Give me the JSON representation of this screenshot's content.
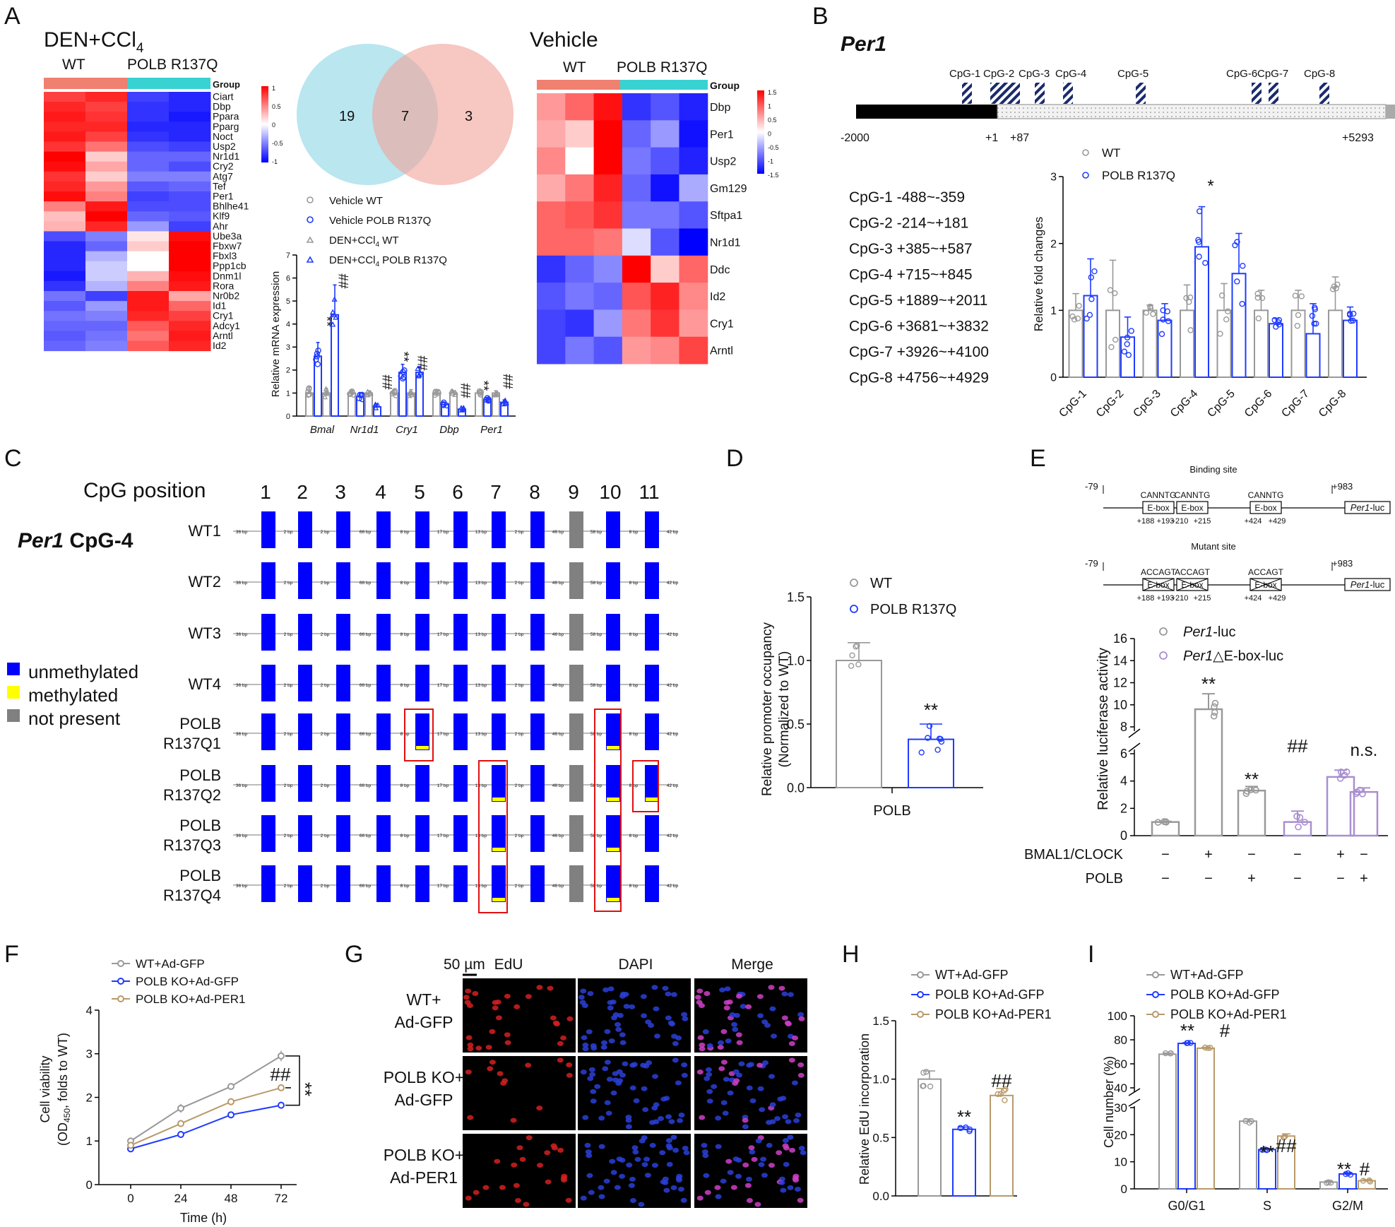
{
  "panel_letters": [
    "A",
    "B",
    "C",
    "D",
    "E",
    "F",
    "G",
    "H",
    "I"
  ],
  "A": {
    "left_heatmap": {
      "title": "DEN+CCl",
      "title_sub": "4",
      "groups": [
        "WT",
        "POLB R137Q"
      ],
      "group_label": "Group",
      "genes": [
        "Ciart",
        "Dbp",
        "Ppara",
        "Pparg",
        "Noct",
        "Usp2",
        "Nr1d1",
        "Cry2",
        "Atg7",
        "Tef",
        "Per1",
        "Bhlhe41",
        "Klf9",
        "Ahr",
        "Ube3a",
        "Fbxw7",
        "Fbxl3",
        "Ppp1cb",
        "Dnm1l",
        "Rora",
        "Nr0b2",
        "Id1",
        "Cry1",
        "Adcy1",
        "Arntl",
        "Id2"
      ],
      "scale": [
        "1",
        "0.5",
        "0",
        "-0.5",
        "-1"
      ],
      "values": [
        [
          0.75,
          0.85,
          -0.75,
          -0.85
        ],
        [
          0.85,
          0.75,
          -0.8,
          -0.85
        ],
        [
          0.9,
          0.8,
          -0.8,
          -0.9
        ],
        [
          0.85,
          0.85,
          -0.85,
          -0.85
        ],
        [
          0.9,
          0.75,
          -0.8,
          -0.85
        ],
        [
          0.8,
          0.55,
          -0.7,
          -0.75
        ],
        [
          1,
          0.2,
          -0.6,
          -0.6
        ],
        [
          0.95,
          0.35,
          -0.6,
          -0.7
        ],
        [
          0.8,
          0.2,
          -0.5,
          -0.5
        ],
        [
          0.85,
          0.4,
          -0.65,
          -0.6
        ],
        [
          0.95,
          0.5,
          -0.75,
          -0.7
        ],
        [
          0.5,
          0.9,
          -0.7,
          -0.7
        ],
        [
          0.25,
          1,
          -0.6,
          -0.65
        ],
        [
          0.3,
          0.85,
          -0.4,
          -0.75
        ],
        [
          -0.7,
          -0.5,
          0.1,
          0.95
        ],
        [
          -0.85,
          -0.6,
          0.2,
          1
        ],
        [
          -0.85,
          -0.3,
          0.0,
          1
        ],
        [
          -0.85,
          -0.2,
          0.0,
          1
        ],
        [
          -0.9,
          -0.2,
          0.3,
          0.95
        ],
        [
          -0.8,
          -0.3,
          0.5,
          0.9
        ],
        [
          -0.55,
          -0.75,
          0.9,
          0.35
        ],
        [
          -0.65,
          -0.4,
          0.9,
          0.6
        ],
        [
          -0.55,
          -0.5,
          0.85,
          0.75
        ],
        [
          -0.6,
          -0.6,
          0.65,
          0.85
        ],
        [
          -0.65,
          -0.55,
          0.55,
          0.9
        ],
        [
          -0.6,
          -0.5,
          0.65,
          0.85
        ]
      ]
    },
    "venn": {
      "left": "19",
      "center": "7",
      "right": "3"
    },
    "bar_chart": {
      "legend": [
        "Vehicle WT",
        "Vehicle POLB R137Q",
        "DEN+CCl4 WT",
        "DEN+CCl4 POLB R137Q"
      ],
      "legend_prefix": "DEN+CCl",
      "legend_sub": "4",
      "legend_tail_wt": " WT",
      "legend_tail_mut": " POLB R137Q",
      "ylabel": "Relative mRNA expression",
      "yticks": [
        "0",
        "1",
        "2",
        "3",
        "4",
        "5",
        "6",
        "7"
      ],
      "categories": [
        "Bmal",
        "Nr1d1",
        "Cry1",
        "Dbp",
        "Per1"
      ]
    },
    "right_heatmap": {
      "title": "Vehicle",
      "groups": [
        "WT",
        "POLB R137Q"
      ],
      "group_label": "Group",
      "genes": [
        "Dbp",
        "Per1",
        "Usp2",
        "Gm129",
        "Sftpa1",
        "Nr1d1",
        "Ddc",
        "Id2",
        "Cry1",
        "Arntl"
      ],
      "scale": [
        "1.5",
        "1",
        "0.5",
        "0",
        "-0.5",
        "-1",
        "-1.5"
      ],
      "values": [
        [
          0.6,
          0.9,
          1.4,
          -1.2,
          -1.0,
          -1.3
        ],
        [
          0.5,
          0.3,
          1.5,
          -0.9,
          -0.6,
          -1.4
        ],
        [
          0.7,
          0.0,
          1.5,
          -0.8,
          -1.0,
          -1.3
        ],
        [
          0.5,
          0.8,
          1.3,
          -0.9,
          -1.4,
          -0.5
        ],
        [
          0.9,
          1.0,
          1.2,
          -0.8,
          -0.8,
          -1.0
        ],
        [
          0.9,
          0.9,
          0.8,
          -0.2,
          -1.0,
          -1.5
        ],
        [
          -1.2,
          -0.9,
          -0.7,
          1.5,
          0.3,
          0.9
        ],
        [
          -1.0,
          -0.8,
          -0.9,
          1.0,
          1.3,
          0.7
        ],
        [
          -1.1,
          -1.2,
          -0.6,
          0.8,
          1.2,
          0.6
        ],
        [
          -1.1,
          -0.8,
          -1.0,
          0.6,
          0.7,
          1.1
        ]
      ]
    }
  },
  "B": {
    "gene": "Per1",
    "cpg_labels": [
      "CpG-1",
      "CpG-2",
      "CpG-3",
      "CpG-4",
      "CpG-5",
      "CpG-6",
      "CpG-7",
      "CpG-8"
    ],
    "positions": [
      "-2000",
      "+1",
      "+87",
      "+5293"
    ],
    "cpg_ranges": [
      "CpG-1  -488~-359",
      "CpG-2  -214~+181",
      "CpG-3  +385~+587",
      "CpG-4  +715~+845",
      "CpG-5  +1889~+2011",
      "CpG-6  +3681~+3832",
      "CpG-7  +3926~+4100",
      "CpG-8  +4756~+4929"
    ],
    "legend": [
      "WT",
      "POLB R137Q"
    ],
    "ylabel": "Relative fold changes",
    "yticks": [
      "0",
      "1",
      "2",
      "3"
    ],
    "star": "*"
  },
  "C": {
    "title": "CpG position",
    "positions": [
      "1",
      "2",
      "3",
      "4",
      "5",
      "6",
      "7",
      "8",
      "9",
      "10",
      "11"
    ],
    "subtitle_gene": "Per1",
    "subtitle_tail": " CpG-4",
    "rows": [
      {
        "l1": "WT1",
        "l2": ""
      },
      {
        "l1": "WT2",
        "l2": ""
      },
      {
        "l1": "WT3",
        "l2": ""
      },
      {
        "l1": "WT4",
        "l2": ""
      },
      {
        "l1": "POLB",
        "l2": "R137Q1"
      },
      {
        "l1": "POLB",
        "l2": "R137Q2"
      },
      {
        "l1": "POLB",
        "l2": "R137Q3"
      },
      {
        "l1": "POLB",
        "l2": "R137Q4"
      }
    ],
    "gaps": [
      "36 bp",
      "2 bp",
      "2 bp",
      "66 bp",
      "8 bp",
      "17 bp",
      "13 bp",
      "2 bp",
      "46 bp",
      "58 bp",
      "8 bp",
      "42 bp"
    ],
    "legend": [
      "unmethylated",
      "methylated",
      "not present"
    ],
    "colors": {
      "unmethylated": "#0000ff",
      "methylated": "#ffff00",
      "not_present": "#808080"
    }
  },
  "D": {
    "legend": [
      "WT",
      "POLB R137Q"
    ],
    "ylabel": "Relative promoter occupancy",
    "ylabel2": "(Normalized to WT)",
    "yticks": [
      "0.0",
      "0.5",
      "1.0",
      "1.5"
    ],
    "xlabel": "POLB",
    "sig": "**"
  },
  "E": {
    "binding_title": "Binding site",
    "mutant_title": "Mutant site",
    "left_pos": "-79",
    "right_pos": "+983",
    "motif": "CANNTG",
    "mut_motif": "ACCAGT",
    "box": "E-box",
    "luc_gene": "Per1",
    "luc_tail": "-luc",
    "box_positions": [
      "+188",
      "+193",
      "+210",
      "+215",
      "+424",
      "+429"
    ],
    "legend_gene": "Per1",
    "legend": [
      "-luc",
      "△E-box-luc"
    ],
    "ylabel": "Relative luciferase activity",
    "yticks_low": [
      "0",
      "2",
      "4",
      "6"
    ],
    "yticks_high": [
      "8",
      "10",
      "12",
      "14",
      "16"
    ],
    "row_labels": [
      "BMAL1/CLOCK",
      "POLB"
    ],
    "row1": [
      "−",
      "+",
      "−",
      "−",
      "+",
      "−"
    ],
    "row2": [
      "−",
      "−",
      "+",
      "−",
      "−",
      "+"
    ],
    "sig": [
      "**",
      "**",
      "##",
      "n.s."
    ]
  },
  "F": {
    "legend": [
      "WT+Ad-GFP",
      "POLB KO+Ad-GFP",
      "POLB KO+Ad-PER1"
    ],
    "ylabel": "Cell viability",
    "ylabel2_pre": "(OD",
    "ylabel2_sub": "450",
    "ylabel2_post": ", folds to WT)",
    "xlabel": "Time (h)",
    "xticks": [
      "0",
      "24",
      "48",
      "72"
    ],
    "yticks": [
      "0",
      "1",
      "2",
      "3",
      "4"
    ],
    "sig": [
      "##",
      "**"
    ]
  },
  "G": {
    "scale_bar": "50 µm",
    "cols": [
      "EdU",
      "DAPI",
      "Merge"
    ],
    "rows": [
      [
        "WT+",
        "Ad-GFP"
      ],
      [
        "POLB KO+",
        "Ad-GFP"
      ],
      [
        "POLB KO+",
        "Ad-PER1"
      ]
    ]
  },
  "H": {
    "legend": [
      "WT+Ad-GFP",
      "POLB KO+Ad-GFP",
      "POLB KO+Ad-PER1"
    ],
    "ylabel": "Relative EdU incorporation",
    "yticks": [
      "0.0",
      "0.5",
      "1.0",
      "1.5"
    ],
    "sig": [
      "**",
      "##"
    ]
  },
  "I": {
    "legend": [
      "WT+Ad-GFP",
      "POLB KO+Ad-GFP",
      "POLB KO+Ad-PER1"
    ],
    "ylabel": "Cell number  (%)",
    "yticks_low": [
      "0",
      "10",
      "20",
      "30"
    ],
    "yticks_high": [
      "40",
      "60",
      "80",
      "100"
    ],
    "xticks": [
      "G0/G1",
      "S",
      "G2/M"
    ],
    "sig": [
      "**",
      "#",
      "**",
      "##",
      "**",
      "#"
    ]
  },
  "colors": {
    "grey": "#999999",
    "blue": "#1f3bff",
    "tan": "#b89a6a",
    "purple": "#a88fd0",
    "teal": "#39d2d2",
    "salmon": "#f08070",
    "navy": "#1a2a6c"
  },
  "chart_data": [
    {
      "type": "bar",
      "panel": "A",
      "categories": [
        "Bmal",
        "Nr1d1",
        "Cry1",
        "Dbp",
        "Per1"
      ],
      "series": [
        {
          "name": "Vehicle WT",
          "values": [
            1.0,
            1.0,
            1.0,
            1.0,
            1.0
          ]
        },
        {
          "name": "Vehicle POLB R137Q",
          "values": [
            2.6,
            0.85,
            1.9,
            0.5,
            0.7
          ]
        },
        {
          "name": "DEN+CCl4 WT",
          "values": [
            1.0,
            1.0,
            1.0,
            1.0,
            1.0
          ]
        },
        {
          "name": "DEN+CCl4 POLB R137Q",
          "values": [
            4.4,
            0.4,
            1.9,
            0.3,
            0.6
          ]
        }
      ],
      "ylabel": "Relative mRNA expression",
      "ylim": [
        0,
        7
      ]
    },
    {
      "type": "bar",
      "panel": "B",
      "categories": [
        "CpG-1",
        "CpG-2",
        "CpG-3",
        "CpG-4",
        "CpG-5",
        "CpG-6",
        "CpG-7",
        "CpG-8"
      ],
      "series": [
        {
          "name": "WT",
          "values": [
            1.0,
            1.0,
            1.0,
            1.0,
            1.0,
            1.0,
            1.0,
            1.0
          ]
        },
        {
          "name": "POLB R137Q",
          "values": [
            1.22,
            0.6,
            0.85,
            1.95,
            1.55,
            0.8,
            0.65,
            0.85
          ]
        }
      ],
      "ylabel": "Relative fold changes",
      "ylim": [
        0,
        3
      ]
    },
    {
      "type": "bar",
      "panel": "D",
      "categories": [
        "POLB"
      ],
      "series": [
        {
          "name": "WT",
          "values": [
            1.0
          ]
        },
        {
          "name": "POLB R137Q",
          "values": [
            0.38
          ]
        }
      ],
      "ylabel": "Relative promoter occupancy",
      "ylim": [
        0,
        1.5
      ]
    },
    {
      "type": "bar",
      "panel": "E",
      "categories": [
        "1",
        "2",
        "3",
        "4",
        "5",
        "6"
      ],
      "values": [
        1.0,
        9.6,
        3.3,
        1.0,
        4.3,
        3.2
      ],
      "ylabel": "Relative luciferase activity",
      "ylim": [
        0,
        16
      ]
    },
    {
      "type": "line",
      "panel": "F",
      "x": [
        0,
        24,
        48,
        72
      ],
      "series": [
        {
          "name": "WT+Ad-GFP",
          "values": [
            1.0,
            1.75,
            2.25,
            2.95
          ]
        },
        {
          "name": "POLB KO+Ad-GFP",
          "values": [
            0.82,
            1.15,
            1.6,
            1.82
          ]
        },
        {
          "name": "POLB KO+Ad-PER1",
          "values": [
            0.9,
            1.4,
            1.9,
            2.22
          ]
        }
      ],
      "xlabel": "Time (h)",
      "ylim": [
        0,
        4
      ]
    },
    {
      "type": "bar",
      "panel": "H",
      "categories": [
        "WT+Ad-GFP",
        "POLB KO+Ad-GFP",
        "POLB KO+Ad-PER1"
      ],
      "values": [
        1.0,
        0.57,
        0.86
      ],
      "ylabel": "Relative EdU incorporation",
      "ylim": [
        0,
        1.5
      ]
    },
    {
      "type": "bar",
      "panel": "I",
      "categories": [
        "G0/G1",
        "S",
        "G2/M"
      ],
      "series": [
        {
          "name": "WT+Ad-GFP",
          "values": [
            68,
            25,
            2.5
          ]
        },
        {
          "name": "POLB KO+Ad-GFP",
          "values": [
            77,
            14.5,
            5.5
          ]
        },
        {
          "name": "POLB KO+Ad-PER1",
          "values": [
            73,
            19.5,
            3
          ]
        }
      ],
      "ylabel": "Cell number  (%)",
      "ylim": [
        0,
        100
      ]
    }
  ]
}
